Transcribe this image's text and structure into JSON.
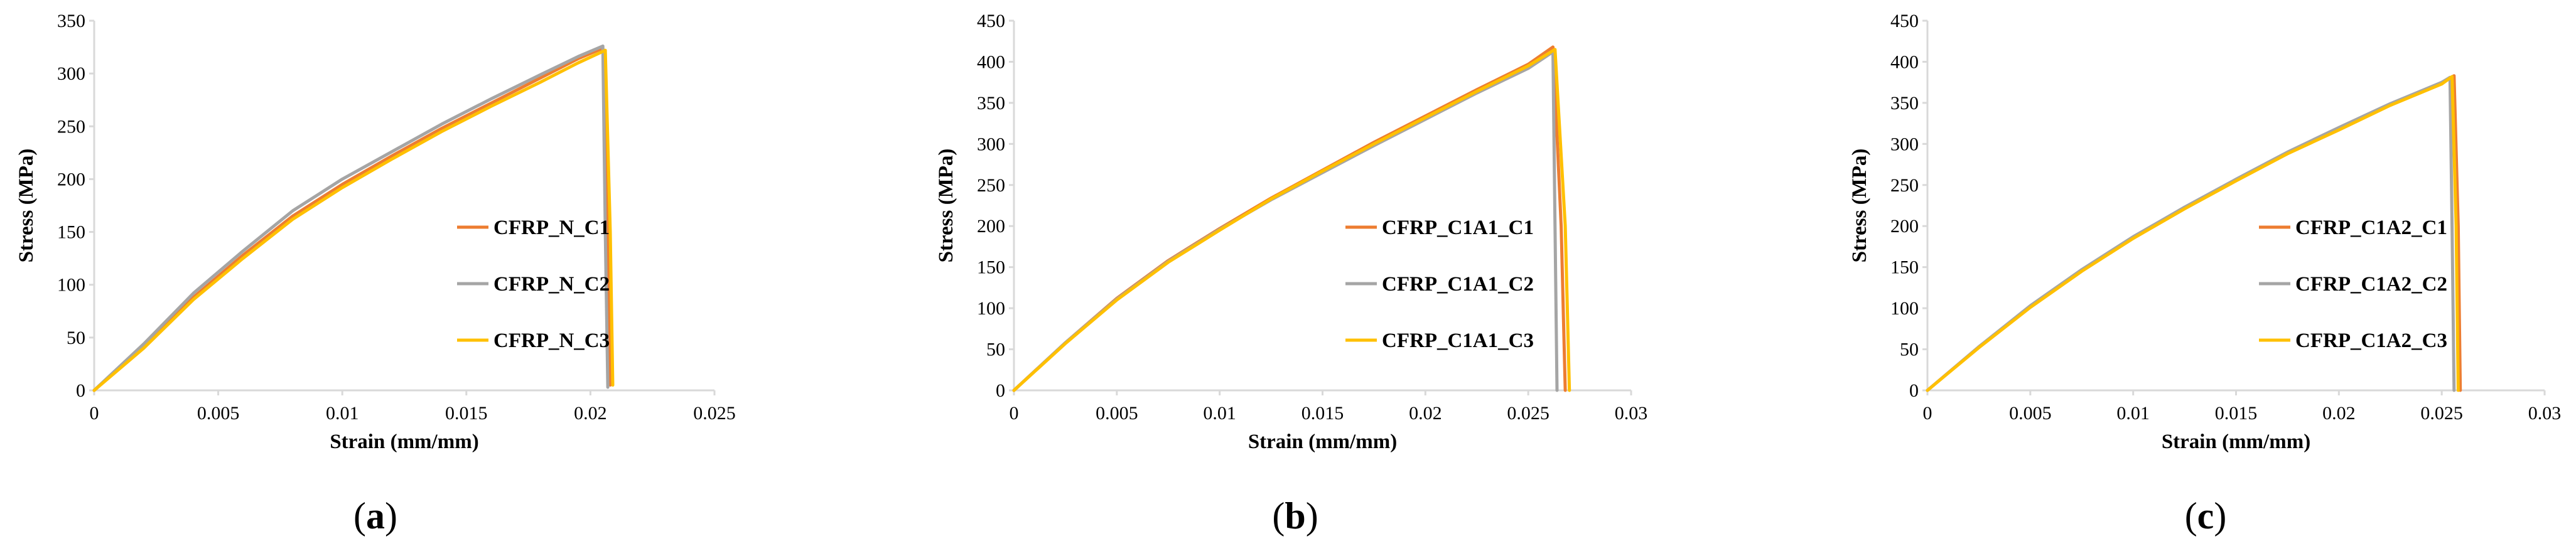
{
  "chart_data": [
    {
      "type": "line",
      "panel_label": "a",
      "title": "",
      "xlabel": "Strain (mm/mm)",
      "ylabel": "Stress (MPa)",
      "xlim": [
        0,
        0.025
      ],
      "ylim": [
        0,
        350
      ],
      "xticks": [
        0,
        0.005,
        0.01,
        0.015,
        0.02,
        0.025
      ],
      "xtick_labels": [
        "0",
        "0.005",
        "0.01",
        "0.015",
        "0.02",
        "0.025"
      ],
      "yticks": [
        0,
        50,
        100,
        150,
        200,
        250,
        300,
        350
      ],
      "ytick_labels": [
        "0",
        "50",
        "100",
        "150",
        "200",
        "250",
        "300",
        "350"
      ],
      "grid": false,
      "legend_position": "center-right",
      "series": [
        {
          "name": "CFRP_N_C1",
          "color": "#ed7d31",
          "x": [
            0,
            0.002,
            0.004,
            0.006,
            0.008,
            0.01,
            0.012,
            0.014,
            0.016,
            0.018,
            0.0195,
            0.0205,
            0.0207,
            0.0208
          ],
          "y": [
            0,
            42,
            88,
            128,
            165,
            195,
            222,
            248,
            272,
            296,
            314,
            324,
            150,
            5
          ]
        },
        {
          "name": "CFRP_N_C2",
          "color": "#a5a5a5",
          "x": [
            0,
            0.002,
            0.004,
            0.006,
            0.008,
            0.01,
            0.012,
            0.014,
            0.016,
            0.018,
            0.0195,
            0.0205,
            0.0206,
            0.0207
          ],
          "y": [
            0,
            44,
            92,
            132,
            170,
            200,
            226,
            252,
            276,
            299,
            316,
            326,
            150,
            3
          ]
        },
        {
          "name": "CFRP_N_C3",
          "color": "#ffc000",
          "x": [
            0,
            0.002,
            0.004,
            0.006,
            0.008,
            0.01,
            0.012,
            0.014,
            0.016,
            0.018,
            0.0195,
            0.0206,
            0.0208,
            0.0209
          ],
          "y": [
            0,
            40,
            86,
            125,
            162,
            192,
            219,
            245,
            269,
            292,
            310,
            322,
            150,
            5
          ]
        }
      ]
    },
    {
      "type": "line",
      "panel_label": "b",
      "title": "",
      "xlabel": "Strain (mm/mm)",
      "ylabel": "Stress (MPa)",
      "xlim": [
        0,
        0.03
      ],
      "ylim": [
        0,
        450
      ],
      "xticks": [
        0,
        0.005,
        0.01,
        0.015,
        0.02,
        0.025,
        0.03
      ],
      "xtick_labels": [
        "0",
        "0.005",
        "0.01",
        "0.015",
        "0.02",
        "0.025",
        "0.03"
      ],
      "yticks": [
        0,
        50,
        100,
        150,
        200,
        250,
        300,
        350,
        400,
        450
      ],
      "ytick_labels": [
        "0",
        "50",
        "100",
        "150",
        "200",
        "250",
        "300",
        "350",
        "400",
        "450"
      ],
      "grid": false,
      "legend_position": "center-right",
      "series": [
        {
          "name": "CFRP_C1A1_C1",
          "color": "#ed7d31",
          "x": [
            0,
            0.0025,
            0.005,
            0.0075,
            0.01,
            0.0125,
            0.015,
            0.0175,
            0.02,
            0.0225,
            0.025,
            0.0262,
            0.0266,
            0.0268
          ],
          "y": [
            0,
            58,
            112,
            158,
            197,
            234,
            268,
            302,
            334,
            366,
            397,
            418,
            200,
            0
          ]
        },
        {
          "name": "CFRP_C1A1_C2",
          "color": "#a5a5a5",
          "x": [
            0,
            0.0025,
            0.005,
            0.0075,
            0.01,
            0.0125,
            0.015,
            0.0175,
            0.02,
            0.0225,
            0.025,
            0.0262,
            0.0263,
            0.0264
          ],
          "y": [
            0,
            58,
            111,
            157,
            196,
            232,
            265,
            298,
            330,
            362,
            392,
            412,
            200,
            0
          ]
        },
        {
          "name": "CFRP_C1A1_C3",
          "color": "#ffc000",
          "x": [
            0,
            0.0025,
            0.005,
            0.0075,
            0.01,
            0.0125,
            0.015,
            0.0175,
            0.02,
            0.0225,
            0.025,
            0.0263,
            0.0268,
            0.027
          ],
          "y": [
            0,
            57,
            110,
            156,
            195,
            233,
            267,
            300,
            332,
            364,
            395,
            415,
            200,
            0
          ]
        }
      ]
    },
    {
      "type": "line",
      "panel_label": "c",
      "title": "",
      "xlabel": "Strain (mm/mm)",
      "ylabel": "Stress (MPa)",
      "xlim": [
        0,
        0.03
      ],
      "ylim": [
        0,
        450
      ],
      "xticks": [
        0,
        0.005,
        0.01,
        0.015,
        0.02,
        0.025,
        0.03
      ],
      "xtick_labels": [
        "0",
        "0.005",
        "0.01",
        "0.015",
        "0.02",
        "0.025",
        "0.03"
      ],
      "yticks": [
        0,
        50,
        100,
        150,
        200,
        250,
        300,
        350,
        400,
        450
      ],
      "ytick_labels": [
        "0",
        "50",
        "100",
        "150",
        "200",
        "250",
        "300",
        "350",
        "400",
        "450"
      ],
      "grid": false,
      "legend_position": "center-right",
      "series": [
        {
          "name": "CFRP_C1A2_C1",
          "color": "#ed7d31",
          "x": [
            0,
            0.0025,
            0.005,
            0.0075,
            0.01,
            0.0125,
            0.015,
            0.0175,
            0.02,
            0.0225,
            0.025,
            0.0256,
            0.0258,
            0.0259
          ],
          "y": [
            0,
            53,
            102,
            146,
            186,
            222,
            256,
            289,
            318,
            348,
            374,
            383,
            200,
            0
          ]
        },
        {
          "name": "CFRP_C1A2_C2",
          "color": "#a5a5a5",
          "x": [
            0,
            0.0025,
            0.005,
            0.0075,
            0.01,
            0.0125,
            0.015,
            0.0175,
            0.02,
            0.0225,
            0.025,
            0.0254,
            0.0255,
            0.0256
          ],
          "y": [
            0,
            53,
            103,
            147,
            187,
            223,
            257,
            290,
            320,
            349,
            375,
            381,
            200,
            0
          ]
        },
        {
          "name": "CFRP_C1A2_C3",
          "color": "#ffc000",
          "x": [
            0,
            0.0025,
            0.005,
            0.0075,
            0.01,
            0.0125,
            0.015,
            0.0175,
            0.02,
            0.0225,
            0.025,
            0.0255,
            0.0257,
            0.0258
          ],
          "y": [
            0,
            52,
            101,
            145,
            185,
            221,
            255,
            288,
            317,
            347,
            373,
            382,
            200,
            0
          ]
        }
      ]
    }
  ]
}
